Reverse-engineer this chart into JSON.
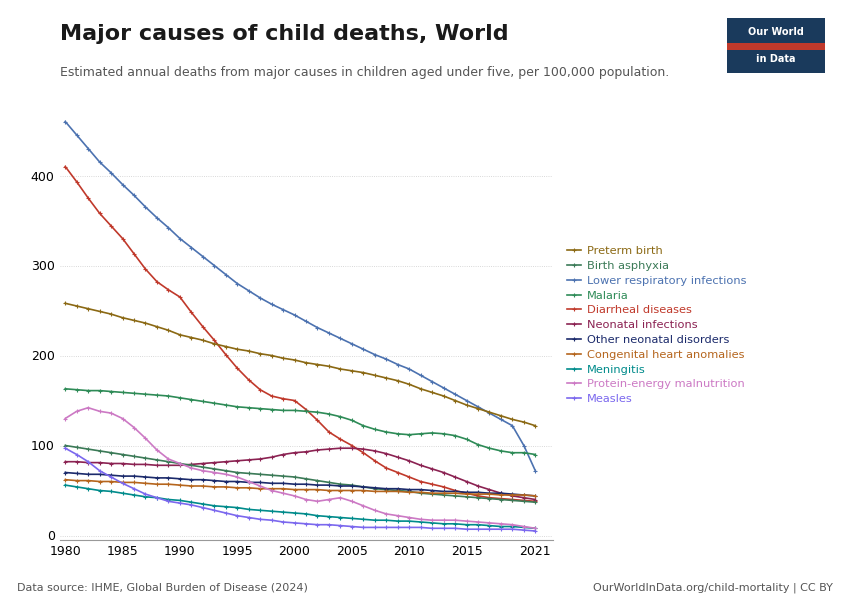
{
  "title": "Major causes of child deaths, World",
  "subtitle": "Estimated annual deaths from major causes in children aged under five, per 100,000 population.",
  "datasource": "Data source: IHME, Global Burden of Disease (2024)",
  "url": "OurWorldInData.org/child-mortality | CC BY",
  "xlim": [
    1979.5,
    2022.5
  ],
  "ylim": [
    -5,
    475
  ],
  "yticks": [
    0,
    100,
    200,
    300,
    400
  ],
  "series": {
    "Lower respiratory infections": {
      "color": "#4C72B0",
      "years": [
        1980,
        1981,
        1982,
        1983,
        1984,
        1985,
        1986,
        1987,
        1988,
        1989,
        1990,
        1991,
        1992,
        1993,
        1994,
        1995,
        1996,
        1997,
        1998,
        1999,
        2000,
        2001,
        2002,
        2003,
        2004,
        2005,
        2006,
        2007,
        2008,
        2009,
        2010,
        2011,
        2012,
        2013,
        2014,
        2015,
        2016,
        2017,
        2018,
        2019,
        2020,
        2021
      ],
      "values": [
        460,
        445,
        430,
        415,
        403,
        390,
        378,
        365,
        353,
        342,
        330,
        320,
        310,
        300,
        290,
        280,
        272,
        264,
        257,
        251,
        245,
        238,
        231,
        225,
        219,
        213,
        207,
        201,
        196,
        190,
        185,
        178,
        171,
        164,
        157,
        150,
        143,
        136,
        129,
        122,
        100,
        72
      ]
    },
    "Diarrheal diseases": {
      "color": "#C0392B",
      "years": [
        1980,
        1981,
        1982,
        1983,
        1984,
        1985,
        1986,
        1987,
        1988,
        1989,
        1990,
        1991,
        1992,
        1993,
        1994,
        1995,
        1996,
        1997,
        1998,
        1999,
        2000,
        2001,
        2002,
        2003,
        2004,
        2005,
        2006,
        2007,
        2008,
        2009,
        2010,
        2011,
        2012,
        2013,
        2014,
        2015,
        2016,
        2017,
        2018,
        2019,
        2020,
        2021
      ],
      "values": [
        410,
        393,
        375,
        358,
        344,
        330,
        313,
        296,
        282,
        273,
        265,
        248,
        232,
        217,
        201,
        186,
        173,
        162,
        155,
        152,
        150,
        140,
        128,
        115,
        107,
        100,
        92,
        83,
        75,
        70,
        65,
        60,
        57,
        54,
        50,
        47,
        44,
        42,
        41,
        40,
        39,
        38
      ]
    },
    "Preterm birth": {
      "color": "#8B6914",
      "years": [
        1980,
        1981,
        1982,
        1983,
        1984,
        1985,
        1986,
        1987,
        1988,
        1989,
        1990,
        1991,
        1992,
        1993,
        1994,
        1995,
        1996,
        1997,
        1998,
        1999,
        2000,
        2001,
        2002,
        2003,
        2004,
        2005,
        2006,
        2007,
        2008,
        2009,
        2010,
        2011,
        2012,
        2013,
        2014,
        2015,
        2016,
        2017,
        2018,
        2019,
        2020,
        2021
      ],
      "values": [
        258,
        255,
        252,
        249,
        246,
        242,
        239,
        236,
        232,
        228,
        223,
        220,
        217,
        213,
        210,
        207,
        205,
        202,
        200,
        197,
        195,
        192,
        190,
        188,
        185,
        183,
        181,
        178,
        175,
        172,
        168,
        163,
        159,
        155,
        150,
        145,
        141,
        137,
        133,
        129,
        126,
        122
      ]
    },
    "Malaria": {
      "color": "#2E8B57",
      "years": [
        1980,
        1981,
        1982,
        1983,
        1984,
        1985,
        1986,
        1987,
        1988,
        1989,
        1990,
        1991,
        1992,
        1993,
        1994,
        1995,
        1996,
        1997,
        1998,
        1999,
        2000,
        2001,
        2002,
        2003,
        2004,
        2005,
        2006,
        2007,
        2008,
        2009,
        2010,
        2011,
        2012,
        2013,
        2014,
        2015,
        2016,
        2017,
        2018,
        2019,
        2020,
        2021
      ],
      "values": [
        163,
        162,
        161,
        161,
        160,
        159,
        158,
        157,
        156,
        155,
        153,
        151,
        149,
        147,
        145,
        143,
        142,
        141,
        140,
        139,
        139,
        138,
        137,
        135,
        132,
        128,
        122,
        118,
        115,
        113,
        112,
        113,
        114,
        113,
        111,
        107,
        101,
        97,
        94,
        92,
        92,
        90
      ]
    },
    "Neonatal infections": {
      "color": "#8B2252",
      "years": [
        1980,
        1981,
        1982,
        1983,
        1984,
        1985,
        1986,
        1987,
        1988,
        1989,
        1990,
        1991,
        1992,
        1993,
        1994,
        1995,
        1996,
        1997,
        1998,
        1999,
        2000,
        2001,
        2002,
        2003,
        2004,
        2005,
        2006,
        2007,
        2008,
        2009,
        2010,
        2011,
        2012,
        2013,
        2014,
        2015,
        2016,
        2017,
        2018,
        2019,
        2020,
        2021
      ],
      "values": [
        82,
        82,
        81,
        81,
        80,
        80,
        79,
        79,
        78,
        78,
        78,
        79,
        80,
        81,
        82,
        83,
        84,
        85,
        87,
        90,
        92,
        93,
        95,
        96,
        97,
        97,
        96,
        94,
        91,
        87,
        83,
        78,
        74,
        70,
        65,
        60,
        55,
        51,
        47,
        44,
        42,
        40
      ]
    },
    "Birth asphyxia": {
      "color": "#3B7A57",
      "years": [
        1980,
        1981,
        1982,
        1983,
        1984,
        1985,
        1986,
        1987,
        1988,
        1989,
        1990,
        1991,
        1992,
        1993,
        1994,
        1995,
        1996,
        1997,
        1998,
        1999,
        2000,
        2001,
        2002,
        2003,
        2004,
        2005,
        2006,
        2007,
        2008,
        2009,
        2010,
        2011,
        2012,
        2013,
        2014,
        2015,
        2016,
        2017,
        2018,
        2019,
        2020,
        2021
      ],
      "values": [
        100,
        98,
        96,
        94,
        92,
        90,
        88,
        86,
        84,
        82,
        80,
        78,
        76,
        74,
        72,
        70,
        69,
        68,
        67,
        66,
        65,
        63,
        61,
        59,
        57,
        56,
        54,
        52,
        51,
        50,
        49,
        47,
        46,
        45,
        44,
        43,
        42,
        41,
        40,
        39,
        38,
        37
      ]
    },
    "Other neonatal disorders": {
      "color": "#1B2A6B",
      "years": [
        1980,
        1981,
        1982,
        1983,
        1984,
        1985,
        1986,
        1987,
        1988,
        1989,
        1990,
        1991,
        1992,
        1993,
        1994,
        1995,
        1996,
        1997,
        1998,
        1999,
        2000,
        2001,
        2002,
        2003,
        2004,
        2005,
        2006,
        2007,
        2008,
        2009,
        2010,
        2011,
        2012,
        2013,
        2014,
        2015,
        2016,
        2017,
        2018,
        2019,
        2020,
        2021
      ],
      "values": [
        70,
        69,
        68,
        68,
        67,
        66,
        66,
        65,
        64,
        64,
        63,
        62,
        62,
        61,
        60,
        60,
        59,
        59,
        58,
        58,
        57,
        57,
        56,
        56,
        55,
        55,
        54,
        53,
        52,
        52,
        51,
        51,
        50,
        49,
        49,
        48,
        48,
        47,
        47,
        46,
        45,
        44
      ]
    },
    "Congenital heart anomalies": {
      "color": "#B5651D",
      "years": [
        1980,
        1981,
        1982,
        1983,
        1984,
        1985,
        1986,
        1987,
        1988,
        1989,
        1990,
        1991,
        1992,
        1993,
        1994,
        1995,
        1996,
        1997,
        1998,
        1999,
        2000,
        2001,
        2002,
        2003,
        2004,
        2005,
        2006,
        2007,
        2008,
        2009,
        2010,
        2011,
        2012,
        2013,
        2014,
        2015,
        2016,
        2017,
        2018,
        2019,
        2020,
        2021
      ],
      "values": [
        62,
        61,
        61,
        60,
        60,
        59,
        59,
        58,
        57,
        57,
        56,
        55,
        55,
        54,
        54,
        53,
        53,
        52,
        52,
        52,
        51,
        51,
        51,
        50,
        50,
        50,
        50,
        49,
        49,
        49,
        48,
        48,
        47,
        47,
        47,
        46,
        46,
        46,
        45,
        45,
        45,
        44
      ]
    },
    "Meningitis": {
      "color": "#008B8B",
      "years": [
        1980,
        1981,
        1982,
        1983,
        1984,
        1985,
        1986,
        1987,
        1988,
        1989,
        1990,
        1991,
        1992,
        1993,
        1994,
        1995,
        1996,
        1997,
        1998,
        1999,
        2000,
        2001,
        2002,
        2003,
        2004,
        2005,
        2006,
        2007,
        2008,
        2009,
        2010,
        2011,
        2012,
        2013,
        2014,
        2015,
        2016,
        2017,
        2018,
        2019,
        2020,
        2021
      ],
      "values": [
        56,
        54,
        52,
        50,
        49,
        47,
        45,
        43,
        42,
        40,
        39,
        37,
        35,
        33,
        32,
        31,
        29,
        28,
        27,
        26,
        25,
        24,
        22,
        21,
        20,
        19,
        18,
        17,
        17,
        16,
        16,
        15,
        14,
        13,
        13,
        12,
        12,
        11,
        10,
        10,
        9,
        8
      ]
    },
    "Protein-energy malnutrition": {
      "color": "#CC79C4",
      "years": [
        1980,
        1981,
        1982,
        1983,
        1984,
        1985,
        1986,
        1987,
        1988,
        1989,
        1990,
        1991,
        1992,
        1993,
        1994,
        1995,
        1996,
        1997,
        1998,
        1999,
        2000,
        2001,
        2002,
        2003,
        2004,
        2005,
        2006,
        2007,
        2008,
        2009,
        2010,
        2011,
        2012,
        2013,
        2014,
        2015,
        2016,
        2017,
        2018,
        2019,
        2020,
        2021
      ],
      "values": [
        130,
        138,
        142,
        138,
        136,
        130,
        120,
        108,
        95,
        85,
        80,
        75,
        72,
        70,
        68,
        65,
        60,
        55,
        50,
        47,
        44,
        40,
        38,
        40,
        42,
        38,
        33,
        28,
        24,
        22,
        20,
        18,
        17,
        17,
        17,
        16,
        15,
        14,
        13,
        12,
        10,
        8
      ]
    },
    "Measles": {
      "color": "#7B68EE",
      "years": [
        1980,
        1981,
        1982,
        1983,
        1984,
        1985,
        1986,
        1987,
        1988,
        1989,
        1990,
        1991,
        1992,
        1993,
        1994,
        1995,
        1996,
        1997,
        1998,
        1999,
        2000,
        2001,
        2002,
        2003,
        2004,
        2005,
        2006,
        2007,
        2008,
        2009,
        2010,
        2011,
        2012,
        2013,
        2014,
        2015,
        2016,
        2017,
        2018,
        2019,
        2020,
        2021
      ],
      "values": [
        97,
        90,
        82,
        72,
        65,
        58,
        52,
        46,
        42,
        38,
        36,
        34,
        31,
        28,
        25,
        22,
        20,
        18,
        17,
        15,
        14,
        13,
        12,
        12,
        11,
        10,
        9,
        9,
        9,
        9,
        9,
        9,
        8,
        8,
        8,
        7,
        7,
        7,
        7,
        7,
        6,
        5
      ]
    }
  },
  "legend_order": [
    "Preterm birth",
    "Birth asphyxia",
    "Lower respiratory infections",
    "Malaria",
    "Diarrheal diseases",
    "Neonatal infections",
    "Other neonatal disorders",
    "Congenital heart anomalies",
    "Meningitis",
    "Protein-energy malnutrition",
    "Measles"
  ],
  "legend_colors": {
    "Preterm birth": "#8B6914",
    "Birth asphyxia": "#3B7A57",
    "Lower respiratory infections": "#4C72B0",
    "Malaria": "#2E8B57",
    "Diarrheal diseases": "#C0392B",
    "Neonatal infections": "#8B2252",
    "Other neonatal disorders": "#1B2A6B",
    "Congenital heart anomalies": "#B5651D",
    "Meningitis": "#008B8B",
    "Protein-energy malnutrition": "#CC79C4",
    "Measles": "#7B68EE"
  }
}
